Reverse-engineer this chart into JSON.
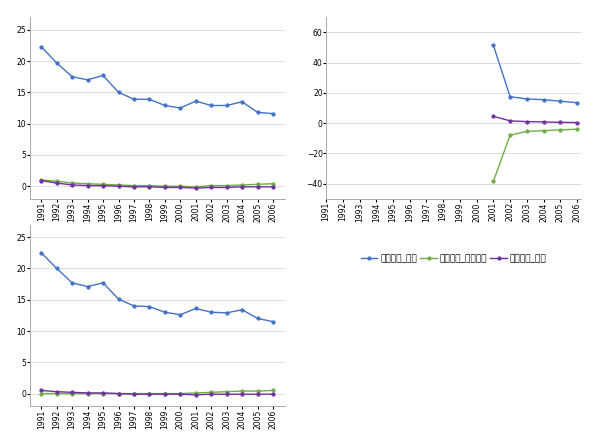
{
  "years": [
    1991,
    1992,
    1993,
    1994,
    1995,
    1996,
    1997,
    1998,
    1999,
    2000,
    2001,
    2002,
    2003,
    2004,
    2005,
    2006
  ],
  "chart1": {
    "series": {
      "석유_석유": [
        22.3,
        19.7,
        17.5,
        17.0,
        17.7,
        15.0,
        13.9,
        13.9,
        12.9,
        12.5,
        13.6,
        12.9,
        12.9,
        13.5,
        11.8,
        11.6
      ],
      "석유_천연가스": [
        1.0,
        0.8,
        0.5,
        0.4,
        0.3,
        0.2,
        0.1,
        0.1,
        0.0,
        0.0,
        -0.1,
        0.1,
        0.1,
        0.2,
        0.3,
        0.4
      ],
      "석유_전력": [
        0.9,
        0.5,
        0.2,
        0.1,
        0.1,
        0.0,
        -0.1,
        -0.1,
        -0.2,
        -0.2,
        -0.3,
        -0.2,
        -0.2,
        -0.1,
        -0.1,
        -0.1
      ]
    },
    "colors": {
      "석유_석유": "#4472C4",
      "석유_천연가스": "#70AD47",
      "석유_전력": "#7030A0"
    },
    "ylim": [
      -2,
      27
    ],
    "yticks": [
      0,
      5,
      10,
      15,
      20,
      25
    ]
  },
  "chart2": {
    "series": {
      "천연가스_석유": [
        null,
        null,
        null,
        null,
        null,
        null,
        null,
        null,
        null,
        null,
        51.5,
        17.5,
        16.0,
        15.5,
        14.5,
        13.5
      ],
      "천연가스_천연가스": [
        null,
        null,
        null,
        null,
        null,
        null,
        null,
        null,
        null,
        null,
        -38.5,
        -8.0,
        -5.5,
        -5.0,
        -4.5,
        -4.0
      ],
      "천연가스_전력": [
        null,
        null,
        null,
        null,
        null,
        null,
        null,
        null,
        null,
        null,
        4.5,
        1.5,
        1.0,
        0.8,
        0.5,
        0.4
      ]
    },
    "colors": {
      "천연가스_석유": "#4472C4",
      "천연가스_천연가스": "#70AD47",
      "천연가스_전력": "#7030A0"
    },
    "ylim": [
      -50,
      70
    ],
    "yticks": [
      -40,
      -20,
      0,
      20,
      40,
      60
    ]
  },
  "chart3": {
    "series": {
      "전력_석유": [
        22.5,
        20.0,
        17.7,
        17.1,
        17.7,
        15.1,
        14.0,
        13.9,
        13.0,
        12.6,
        13.6,
        13.0,
        12.9,
        13.4,
        12.0,
        11.5
      ],
      "전력_천연가스": [
        0.0,
        0.0,
        0.0,
        0.0,
        0.0,
        0.0,
        0.0,
        0.0,
        0.0,
        0.0,
        0.1,
        0.2,
        0.3,
        0.4,
        0.4,
        0.5
      ],
      "전력_전력": [
        0.5,
        0.3,
        0.2,
        0.1,
        0.1,
        0.0,
        -0.1,
        -0.1,
        -0.1,
        -0.1,
        -0.2,
        -0.1,
        -0.1,
        -0.1,
        -0.1,
        -0.1
      ]
    },
    "colors": {
      "전력_석유": "#4472C4",
      "전력_천연가스": "#70AD47",
      "전력_전력": "#7030A0"
    },
    "ylim": [
      -2,
      27
    ],
    "yticks": [
      0,
      5,
      10,
      15,
      20,
      25
    ]
  },
  "marker": "o",
  "markersize": 2.5,
  "linewidth": 1.0,
  "tick_fontsize": 5.5,
  "legend_fontsize": 6.5,
  "bg_color": "#FFFFFF",
  "plot_bg_color": "#FFFFFF",
  "grid_color": "#D0D0D0",
  "spine_color": "#AAAAAA"
}
